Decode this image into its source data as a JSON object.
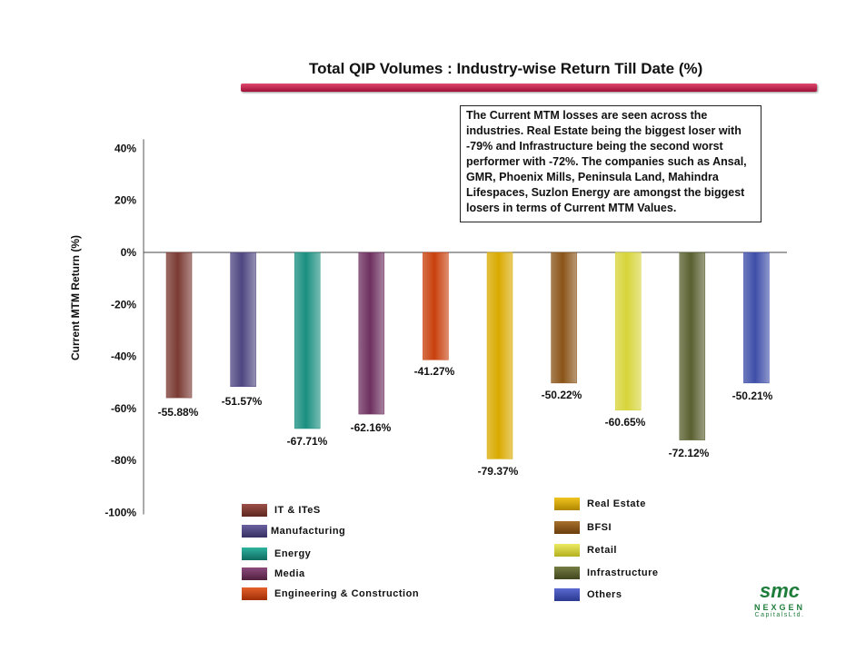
{
  "chart_data": {
    "type": "bar",
    "title": "Total QIP Volumes : Industry-wise Return Till Date (%)",
    "ylabel": "Current MTM Return (%)",
    "xlabel": "",
    "ylim": [
      -100,
      40
    ],
    "yticks": [
      "40%",
      "20%",
      "0%",
      "-20%",
      "-40%",
      "-60%",
      "-80%",
      "-100%"
    ],
    "categories": [
      "IT & ITeS",
      "Manufacturing",
      "Energy",
      "Media",
      "Engineering & Construction",
      "Real Estate",
      "BFSI",
      "Retail",
      "Infrastructure",
      "Others"
    ],
    "values": [
      -55.88,
      -51.57,
      -67.71,
      -62.16,
      -41.27,
      -79.37,
      -50.22,
      -60.65,
      -72.12,
      -50.21
    ],
    "value_labels": [
      "-55.88%",
      "-51.57%",
      "-67.71%",
      "-62.16%",
      "-41.27%",
      "-79.37%",
      "-50.22%",
      "-60.65%",
      "-72.12%",
      "-50.21%"
    ],
    "colors": [
      "#7b3a33",
      "#4e4680",
      "#1a8f80",
      "#6e3060",
      "#c8400c",
      "#d9aa00",
      "#8a5418",
      "#d7d43a",
      "#5a6030",
      "#3e4ea8"
    ],
    "legend": "bottom"
  },
  "note_text": "The Current MTM losses are seen across the industries. Real Estate being the biggest loser with -79% and Infrastructure being the second worst performer with -72%. The companies such as Ansal, GMR, Phoenix Mills, Peninsula Land, Mahindra Lifespaces, Suzlon Energy are amongst the biggest losers in terms of Current MTM Values.",
  "legend_labels": {
    "it": "IT & ITeS",
    "manufacturing": "Manufacturing",
    "energy": "Energy",
    "media": "Media",
    "engineering": "Engineering & Construction",
    "real_estate": "Real Estate",
    "bfsi": "BFSI",
    "retail": "Retail",
    "infrastructure": "Infrastructure",
    "others": "Others"
  },
  "logo": {
    "name": "smc",
    "line1": "NEXGEN",
    "line2": "CapitalsLtd."
  }
}
